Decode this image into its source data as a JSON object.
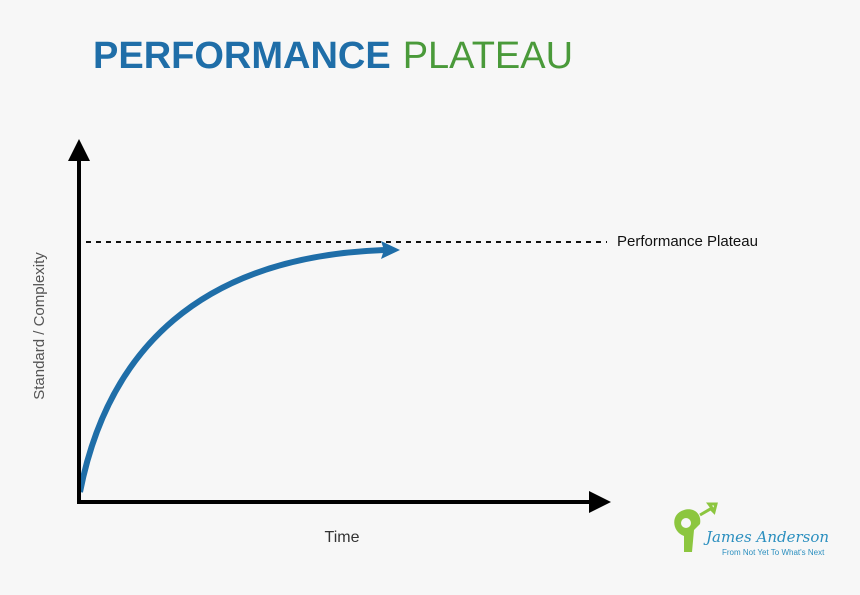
{
  "title": {
    "bold": "PERFORMANCE",
    "light": "PLATEAU"
  },
  "plateau_label": "Performance Plateau",
  "y_axis_label": "Standard / Complexity",
  "x_axis_label": "Time",
  "logo": {
    "name": "James Anderson",
    "tagline": "From Not Yet To What's Next"
  }
}
